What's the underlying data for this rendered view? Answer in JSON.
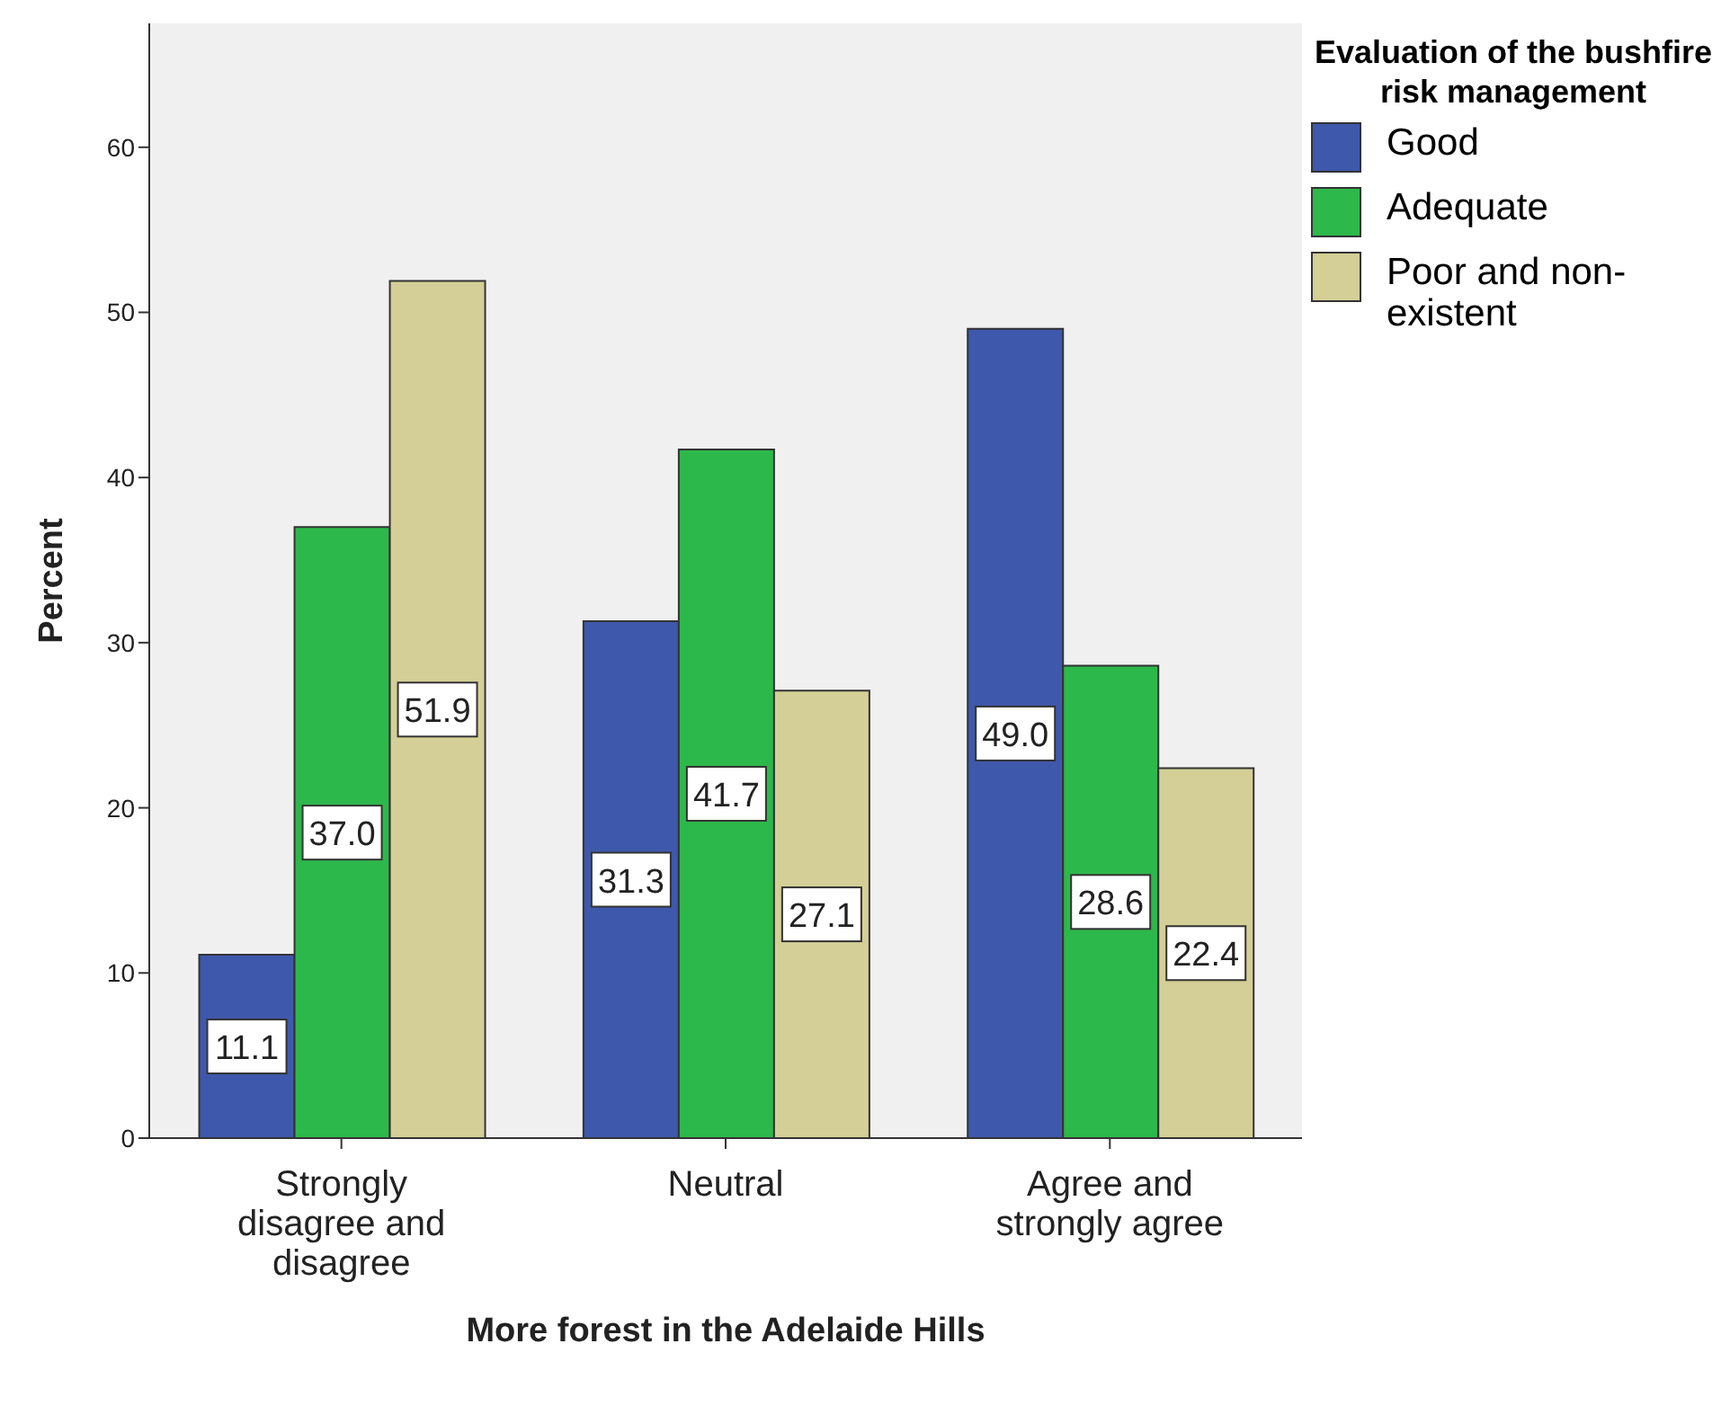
{
  "chart_data": {
    "type": "bar",
    "xlabel": "More forest in the Adelaide Hills",
    "ylabel": "Percent",
    "legend_title": "Evaluation of the bushfire risk management",
    "categories": [
      "Strongly disagree and disagree",
      "Neutral",
      "Agree and strongly agree"
    ],
    "series": [
      {
        "name": "Good",
        "color": "#3e58ac",
        "values": [
          11.1,
          31.3,
          49.0
        ],
        "value_labels": [
          "11.1",
          "31.3",
          "49.0"
        ]
      },
      {
        "name": "Adequate",
        "color": "#2db84b",
        "values": [
          37.0,
          41.7,
          28.6
        ],
        "value_labels": [
          "37.0",
          "41.7",
          "28.6"
        ]
      },
      {
        "name": "Poor and non-existent",
        "color": "#d4cf97",
        "values": [
          51.9,
          27.1,
          22.4
        ],
        "value_labels": [
          "51.9",
          "27.1",
          "22.4"
        ]
      }
    ],
    "ylim": [
      0,
      67.5
    ],
    "yticks": [
      0,
      10,
      20,
      30,
      40,
      50,
      60
    ],
    "grid": false,
    "legend": "top right"
  }
}
